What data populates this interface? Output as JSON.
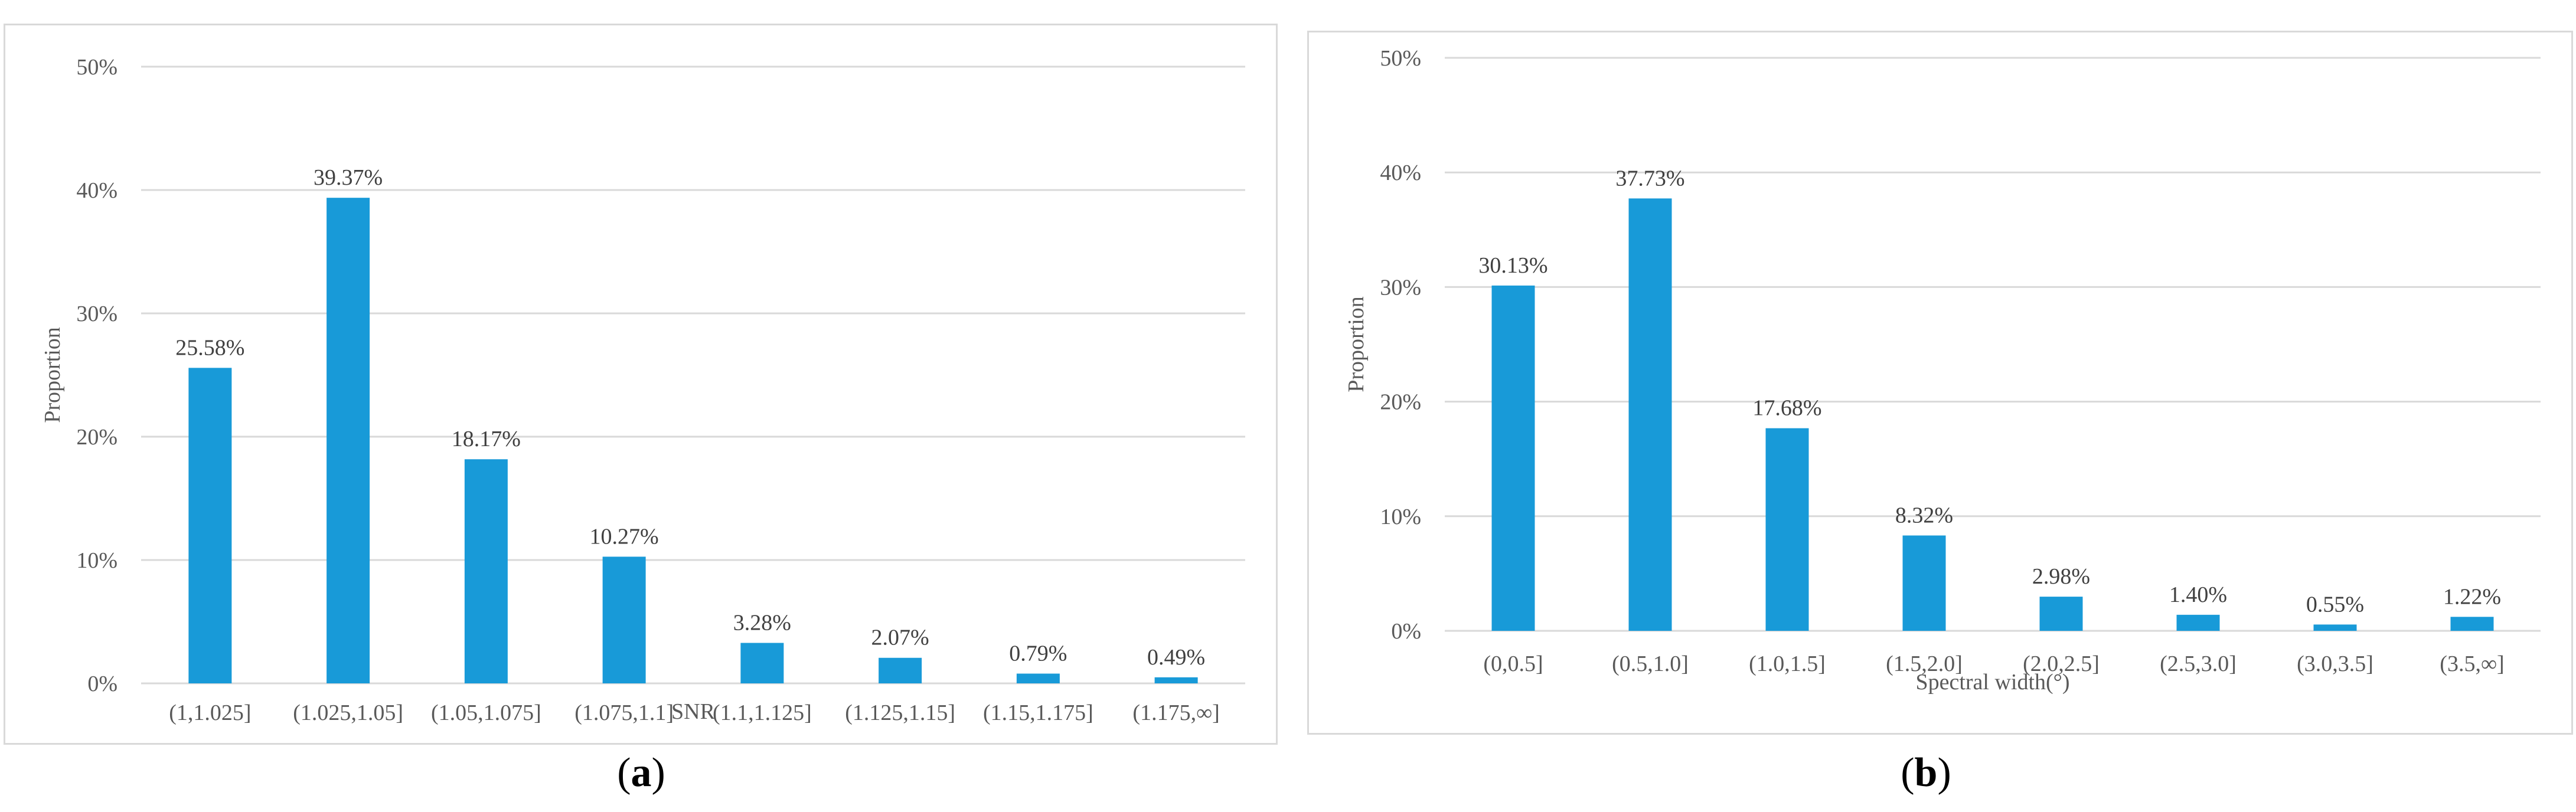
{
  "chart_data": [
    {
      "type": "bar",
      "panel_label": "a",
      "xlabel": "SNR",
      "ylabel": "Proportion",
      "ylim": [
        0,
        50
      ],
      "yticks": [
        "0%",
        "10%",
        "20%",
        "30%",
        "40%",
        "50%"
      ],
      "grid": true,
      "categories": [
        "(1,1.025]",
        "(1.025,1.05]",
        "(1.05,1.075]",
        "(1.075,1.1]",
        "(1.1,1.125]",
        "(1.125,1.15]",
        "(1.15,1.175]",
        "(1.175,∞]"
      ],
      "values": [
        25.58,
        39.37,
        18.17,
        10.27,
        3.28,
        2.07,
        0.79,
        0.49
      ],
      "data_labels": [
        "25.58%",
        "39.37%",
        "18.17%",
        "10.27%",
        "3.28%",
        "2.07%",
        "0.79%",
        "0.49%"
      ],
      "bar_color": "#189ad8"
    },
    {
      "type": "bar",
      "panel_label": "b",
      "xlabel": "Spectral width(°)",
      "ylabel": "Proportion",
      "ylim": [
        0,
        50
      ],
      "yticks": [
        "0%",
        "10%",
        "20%",
        "30%",
        "40%",
        "50%"
      ],
      "grid": true,
      "categories": [
        "(0,0.5]",
        "(0.5,1.0]",
        "(1.0,1.5]",
        "(1.5,2.0]",
        "(2.0,2.5]",
        "(2.5,3.0]",
        "(3.0,3.5]",
        "(3.5,∞]"
      ],
      "values": [
        30.13,
        37.73,
        17.68,
        8.32,
        2.98,
        1.4,
        0.55,
        1.22
      ],
      "data_labels": [
        "30.13%",
        "37.73%",
        "17.68%",
        "8.32%",
        "2.98%",
        "1.40%",
        "0.55%",
        "1.22%"
      ],
      "bar_color": "#189ad8"
    }
  ]
}
